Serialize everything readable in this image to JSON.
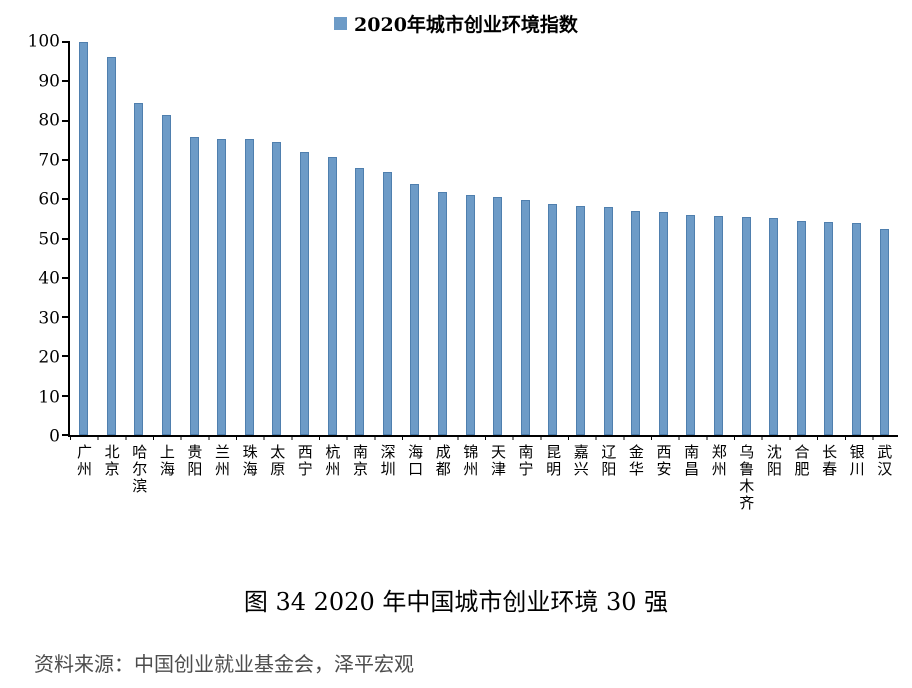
{
  "chart_data": {
    "type": "bar",
    "title": "",
    "legend": "2020年城市创业环境指数",
    "legend_position": "top",
    "grid": false,
    "bar_color": "#6D9BC7",
    "bar_border_color": "#4F7FAE",
    "categories": [
      "广州",
      "北京",
      "哈尔滨",
      "上海",
      "贵阳",
      "兰州",
      "珠海",
      "太原",
      "西宁",
      "杭州",
      "南京",
      "深圳",
      "海口",
      "成都",
      "锦州",
      "天津",
      "南宁",
      "昆明",
      "嘉兴",
      "辽阳",
      "金华",
      "西安",
      "南昌",
      "郑州",
      "乌鲁木齐",
      "沈阳",
      "合肥",
      "长春",
      "银川",
      "武汉"
    ],
    "values": [
      100,
      96.2,
      84.5,
      81.4,
      75.8,
      75.4,
      75.4,
      74.5,
      72.1,
      70.7,
      68.0,
      67.0,
      63.8,
      61.8,
      61.1,
      60.6,
      59.9,
      58.7,
      58.2,
      57.9,
      57.1,
      56.7,
      55.9,
      55.8,
      55.5,
      55.2,
      54.4,
      54.3,
      54.0,
      52.5
    ],
    "xlabel": "",
    "ylabel": "",
    "ylim": [
      0,
      100
    ],
    "yticks": [
      0,
      10,
      20,
      30,
      40,
      50,
      60,
      70,
      80,
      90,
      100
    ]
  },
  "caption": "图 34  2020 年中国城市创业环境 30 强",
  "source": "资料来源：中国创业就业基金会，泽平宏观"
}
